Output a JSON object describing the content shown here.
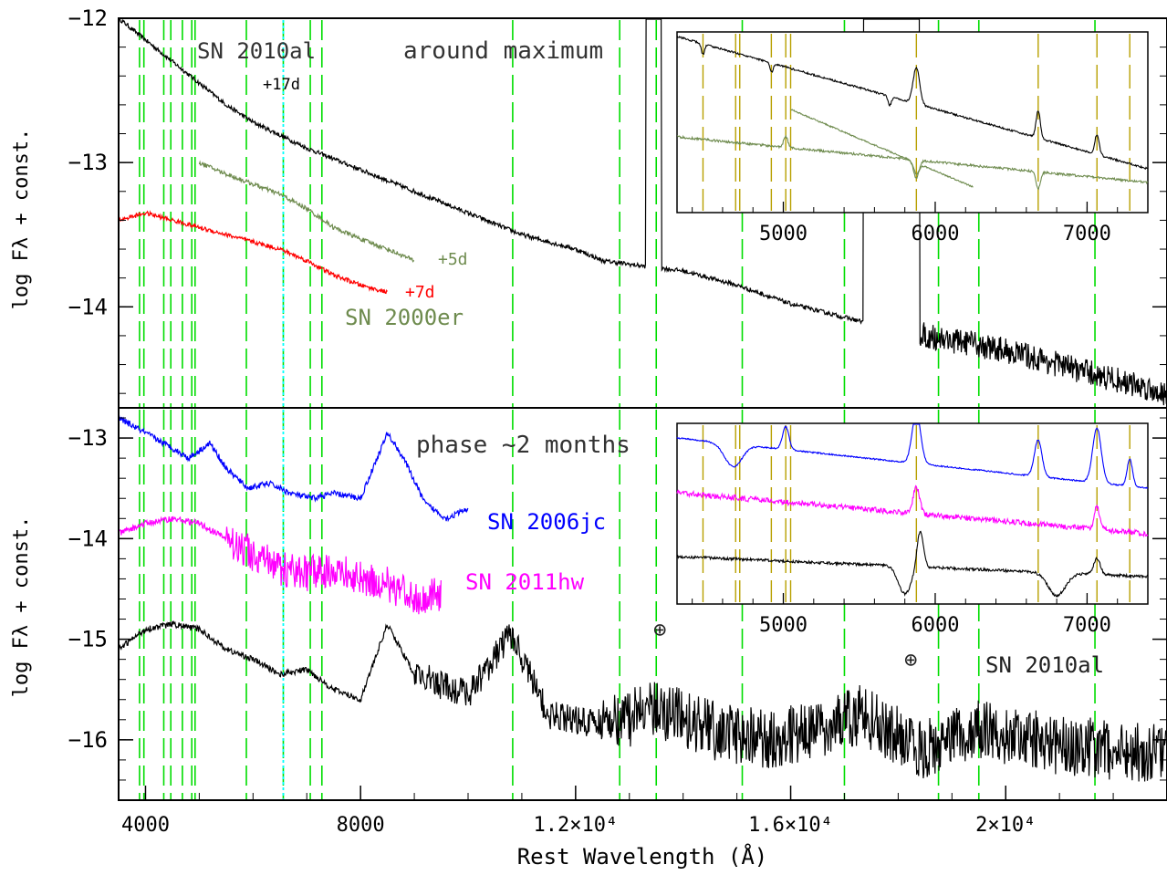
{
  "chart_data": [
    {
      "type": "line",
      "panel": "top",
      "title": "around maximum",
      "ylabel": "log Fλ + const.",
      "xlabel": "Rest Wavelength (Å)",
      "xlim": [
        3500,
        23000
      ],
      "ylim": [
        -14.7,
        -12
      ],
      "y_ticks": [
        -12,
        -13,
        -14
      ],
      "y_tick_labels": [
        "−12",
        "−13",
        "−14"
      ],
      "series": [
        {
          "name": "SN 2010al",
          "color": "#000000",
          "phase": "+17d",
          "x": [
            3500,
            4000,
            4500,
            5000,
            5500,
            6000,
            7000,
            8000,
            9000,
            10000,
            11000,
            12000,
            12500,
            13300,
            14000,
            15000,
            16000,
            17300,
            18500,
            20000,
            21000,
            22000,
            23000
          ],
          "y": [
            -12.0,
            -12.15,
            -12.3,
            -12.45,
            -12.6,
            -12.72,
            -12.9,
            -13.05,
            -13.2,
            -13.35,
            -13.5,
            -13.6,
            -13.68,
            -13.72,
            -13.75,
            -13.85,
            -13.98,
            -14.1,
            -14.2,
            -14.3,
            -14.4,
            -14.5,
            -14.6
          ]
        },
        {
          "name": "SN 2000er (+5d)",
          "color": "#6e8b4e",
          "phase": "+5d",
          "x": [
            5000,
            5500,
            6000,
            6500,
            7000,
            7500,
            8000,
            8500,
            9000
          ],
          "y": [
            -13.0,
            -13.08,
            -13.15,
            -13.22,
            -13.32,
            -13.45,
            -13.53,
            -13.6,
            -13.68
          ]
        },
        {
          "name": "SN 2000er (+7d)",
          "color": "#ff0000",
          "phase": "+7d",
          "x": [
            3500,
            4000,
            4500,
            5000,
            5500,
            6000,
            6500,
            7000,
            7500,
            8000,
            8500
          ],
          "y": [
            -13.4,
            -13.35,
            -13.4,
            -13.45,
            -13.5,
            -13.55,
            -13.6,
            -13.68,
            -13.78,
            -13.85,
            -13.9
          ]
        }
      ],
      "labels": [
        "SN 2010al",
        "+17d",
        "+5d",
        "+7d",
        "SN 2000er"
      ],
      "inset": {
        "xlim": [
          4300,
          7400
        ],
        "x_ticks": [
          5000,
          6000,
          7000
        ],
        "x_tick_labels": [
          "5000",
          "6000",
          "7000"
        ]
      }
    },
    {
      "type": "line",
      "panel": "bottom",
      "title": "phase ~2 months",
      "ylabel": "log Fλ + const.",
      "xlabel": "Rest Wavelength (Å)",
      "xlim": [
        3500,
        23000
      ],
      "ylim": [
        -16.6,
        -12.7
      ],
      "y_ticks": [
        -13,
        -14,
        -15,
        -16
      ],
      "y_tick_labels": [
        "−13",
        "−14",
        "−15",
        "−16"
      ],
      "x_ticks": [
        4000,
        8000,
        12000,
        16000,
        20000
      ],
      "x_tick_labels": [
        "4000",
        "8000",
        "1.2×10⁴",
        "1.6×10⁴",
        "2×10⁴"
      ],
      "series": [
        {
          "name": "SN 2006jc",
          "color": "#0000ff",
          "x": [
            3500,
            4000,
            4500,
            4800,
            5200,
            5500,
            5900,
            6300,
            6700,
            7100,
            7500,
            8000,
            8500,
            8800,
            9200,
            9600,
            10000
          ],
          "y": [
            -12.8,
            -12.95,
            -13.1,
            -13.2,
            -13.05,
            -13.3,
            -13.5,
            -13.45,
            -13.55,
            -13.6,
            -13.55,
            -13.6,
            -12.95,
            -13.2,
            -13.65,
            -13.8,
            -13.7
          ]
        },
        {
          "name": "SN 2011hw",
          "color": "#ff00ff",
          "x": [
            3500,
            4000,
            4500,
            5000,
            5500,
            6000,
            6500,
            7000,
            7500,
            8000,
            8500,
            9000,
            9500
          ],
          "y": [
            -13.95,
            -13.85,
            -13.8,
            -13.85,
            -14.0,
            -14.15,
            -14.3,
            -14.35,
            -14.3,
            -14.4,
            -14.45,
            -14.6,
            -14.55
          ]
        },
        {
          "name": "SN 2010al",
          "color": "#000000",
          "x": [
            3500,
            4000,
            4500,
            5000,
            5500,
            6000,
            6500,
            7000,
            7500,
            8000,
            8500,
            9000,
            10000,
            10800,
            11500,
            12500,
            13500,
            14500,
            15500,
            16500,
            17300,
            18500,
            19500,
            21000,
            22000,
            23000
          ],
          "y": [
            -15.1,
            -14.9,
            -14.85,
            -14.9,
            -15.1,
            -15.2,
            -15.35,
            -15.3,
            -15.5,
            -15.6,
            -14.85,
            -15.35,
            -15.55,
            -14.95,
            -15.75,
            -15.85,
            -15.7,
            -15.9,
            -16.0,
            -15.9,
            -15.75,
            -16.1,
            -15.9,
            -16.05,
            -16.1,
            -16.15
          ]
        }
      ],
      "labels": [
        "SN 2006jc",
        "SN 2011hw",
        "SN 2010al"
      ],
      "telluric_symbol": "⊕",
      "inset": {
        "xlim": [
          4300,
          7400
        ],
        "x_ticks": [
          5000,
          6000,
          7000
        ],
        "x_tick_labels": [
          "5000",
          "6000",
          "7000"
        ]
      }
    }
  ],
  "line_markers": {
    "main_wavelengths": [
      3889,
      3970,
      4340,
      4471,
      4686,
      4861,
      4922,
      5876,
      6563,
      7065,
      7281,
      10830,
      12820,
      13500,
      15100,
      17000,
      18750,
      19500,
      21660
    ],
    "cyan_wavelength": 6563,
    "inset_wavelengths": [
      4471,
      4686,
      4713,
      4921,
      5016,
      5048,
      5876,
      6678,
      7065,
      7281
    ],
    "colors": {
      "main": "#00dd00",
      "cyan": "#00ffff",
      "inset": "#b8a000"
    }
  }
}
